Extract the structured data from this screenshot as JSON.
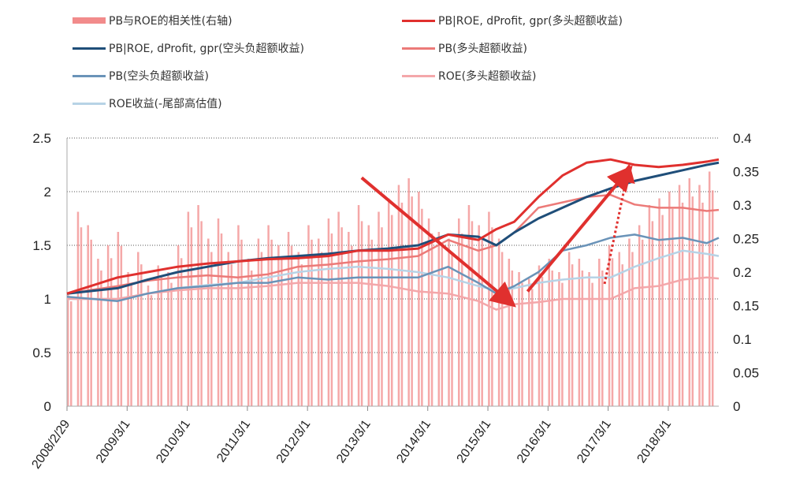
{
  "chart_data": {
    "type": "line",
    "title": "",
    "x_unit": "decimal year",
    "x_ticks": [
      {
        "x": 2008.16,
        "label": "2008/2/29"
      },
      {
        "x": 2009.16,
        "label": "2009/3/1"
      },
      {
        "x": 2010.16,
        "label": "2010/3/1"
      },
      {
        "x": 2011.16,
        "label": "2011/3/1"
      },
      {
        "x": 2012.16,
        "label": "2012/3/1"
      },
      {
        "x": 2013.16,
        "label": "2013/3/1"
      },
      {
        "x": 2014.16,
        "label": "2014/3/1"
      },
      {
        "x": 2015.16,
        "label": "2015/3/1"
      },
      {
        "x": 2016.16,
        "label": "2016/3/1"
      },
      {
        "x": 2017.16,
        "label": "2017/3/1"
      },
      {
        "x": 2018.16,
        "label": "2018/3/1"
      }
    ],
    "xlim": [
      2008.16,
      2019.0
    ],
    "y_left": {
      "lim": [
        0,
        2.5
      ],
      "ticks": [
        "0",
        "0.5",
        "1",
        "1.5",
        "2",
        "2.5"
      ]
    },
    "y_right": {
      "lim": [
        0,
        0.4
      ],
      "ticks": [
        "0",
        "0.05",
        "0.1",
        "0.15",
        "0.2",
        "0.25",
        "0.3",
        "0.35",
        "0.4"
      ]
    },
    "grid": "horizontal dotted",
    "legend_position": "top",
    "bars": {
      "name": "PB与ROE的相关性(右轴)",
      "axis": "right",
      "color": "#f28b8b",
      "x_start": 2008.16,
      "step": 0.1667,
      "values": [
        0.17,
        0.29,
        0.27,
        0.22,
        0.24,
        0.26,
        0.2,
        0.23,
        0.18,
        0.21,
        0.2,
        0.24,
        0.29,
        0.3,
        0.25,
        0.28,
        0.23,
        0.27,
        0.22,
        0.25,
        0.27,
        0.24,
        0.26,
        0.23,
        0.27,
        0.25,
        0.28,
        0.29,
        0.26,
        0.3,
        0.27,
        0.29,
        0.31,
        0.33,
        0.34,
        0.32,
        0.28,
        0.26,
        0.25,
        0.28,
        0.3,
        0.27,
        0.29,
        0.25,
        0.22,
        0.2,
        0.19,
        0.21,
        0.22,
        0.2,
        0.23,
        0.22,
        0.2,
        0.22,
        0.24,
        0.23,
        0.25,
        0.27,
        0.3,
        0.31,
        0.32,
        0.33,
        0.34,
        0.33,
        0.35
      ]
    },
    "series": [
      {
        "name": "PB|ROE, dProfit, gpr(多头超额收益)",
        "color": "#e0302e",
        "width": 3,
        "x": [
          2008.16,
          2009.0,
          2009.5,
          2010.0,
          2010.5,
          2011.0,
          2011.5,
          2012.0,
          2012.5,
          2013.0,
          2013.5,
          2014.0,
          2014.5,
          2015.0,
          2015.3,
          2015.6,
          2016.0,
          2016.4,
          2016.8,
          2017.2,
          2017.6,
          2018.0,
          2018.4,
          2018.8,
          2019.0
        ],
        "values": [
          1.05,
          1.2,
          1.25,
          1.3,
          1.33,
          1.35,
          1.37,
          1.38,
          1.4,
          1.45,
          1.45,
          1.47,
          1.6,
          1.55,
          1.65,
          1.72,
          1.95,
          2.15,
          2.27,
          2.3,
          2.25,
          2.23,
          2.25,
          2.28,
          2.3
        ]
      },
      {
        "name": "PB|ROE, dProfit, gpr(空头负超额收益)",
        "color": "#1f4e79",
        "width": 3,
        "x": [
          2008.16,
          2009.0,
          2009.5,
          2010.0,
          2010.5,
          2011.0,
          2011.5,
          2012.0,
          2012.5,
          2013.0,
          2013.5,
          2014.0,
          2014.5,
          2015.0,
          2015.3,
          2015.6,
          2016.0,
          2016.4,
          2016.8,
          2017.2,
          2017.6,
          2018.0,
          2018.4,
          2018.8,
          2019.0
        ],
        "values": [
          1.05,
          1.1,
          1.18,
          1.25,
          1.3,
          1.35,
          1.38,
          1.4,
          1.42,
          1.45,
          1.47,
          1.5,
          1.6,
          1.58,
          1.5,
          1.62,
          1.75,
          1.85,
          1.95,
          2.03,
          2.1,
          2.15,
          2.2,
          2.25,
          2.27
        ]
      },
      {
        "name": "PB(多头超额收益)",
        "color": "#ec7a78",
        "width": 2.5,
        "x": [
          2008.16,
          2009.0,
          2009.5,
          2010.0,
          2010.5,
          2011.0,
          2011.5,
          2012.0,
          2012.5,
          2013.0,
          2013.5,
          2014.0,
          2014.5,
          2015.0,
          2015.3,
          2015.6,
          2016.0,
          2016.4,
          2016.8,
          2017.2,
          2017.6,
          2018.0,
          2018.4,
          2018.8,
          2019.0
        ],
        "values": [
          1.05,
          1.12,
          1.17,
          1.2,
          1.22,
          1.2,
          1.23,
          1.3,
          1.32,
          1.35,
          1.37,
          1.4,
          1.55,
          1.45,
          1.5,
          1.62,
          1.85,
          1.9,
          1.95,
          1.97,
          1.88,
          1.85,
          1.85,
          1.82,
          1.83
        ]
      },
      {
        "name": "PB(空头负超额收益)",
        "color": "#6a93b8",
        "width": 2.5,
        "x": [
          2008.16,
          2009.0,
          2009.5,
          2010.0,
          2010.5,
          2011.0,
          2011.5,
          2012.0,
          2012.5,
          2013.0,
          2013.5,
          2014.0,
          2014.5,
          2015.0,
          2015.3,
          2015.6,
          2016.0,
          2016.4,
          2016.8,
          2017.2,
          2017.6,
          2018.0,
          2018.4,
          2018.8,
          2019.0
        ],
        "values": [
          1.02,
          0.98,
          1.05,
          1.1,
          1.12,
          1.15,
          1.15,
          1.2,
          1.18,
          1.2,
          1.2,
          1.2,
          1.3,
          1.15,
          1.05,
          1.12,
          1.25,
          1.45,
          1.5,
          1.57,
          1.6,
          1.55,
          1.57,
          1.52,
          1.57
        ]
      },
      {
        "name": "ROE(多头超额收益)",
        "color": "#f4a7aa",
        "width": 2.5,
        "x": [
          2008.16,
          2009.0,
          2009.5,
          2010.0,
          2010.5,
          2011.0,
          2011.5,
          2012.0,
          2012.5,
          2013.0,
          2013.5,
          2014.0,
          2014.5,
          2015.0,
          2015.3,
          2015.6,
          2016.0,
          2016.4,
          2016.8,
          2017.2,
          2017.6,
          2018.0,
          2018.4,
          2018.8,
          2019.0
        ],
        "values": [
          1.0,
          1.0,
          1.05,
          1.08,
          1.1,
          1.1,
          1.12,
          1.15,
          1.15,
          1.15,
          1.12,
          1.07,
          1.05,
          0.98,
          0.9,
          0.95,
          0.97,
          1.0,
          1.0,
          1.0,
          1.1,
          1.12,
          1.18,
          1.2,
          1.19
        ]
      },
      {
        "name": "ROE收益(-尾部高估值)",
        "color": "#b7d3e6",
        "width": 2.5,
        "x": [
          2008.16,
          2009.0,
          2009.5,
          2010.0,
          2010.5,
          2011.0,
          2011.5,
          2012.0,
          2012.5,
          2013.0,
          2013.5,
          2014.0,
          2014.5,
          2015.0,
          2015.3,
          2015.6,
          2016.0,
          2016.4,
          2016.8,
          2017.2,
          2017.6,
          2018.0,
          2018.4,
          2018.8,
          2019.0
        ],
        "values": [
          1.0,
          1.0,
          1.05,
          1.1,
          1.13,
          1.15,
          1.2,
          1.25,
          1.28,
          1.3,
          1.28,
          1.25,
          1.2,
          1.12,
          1.08,
          1.1,
          1.15,
          1.18,
          1.2,
          1.2,
          1.3,
          1.38,
          1.45,
          1.42,
          1.4
        ]
      }
    ],
    "annotations": [
      {
        "type": "arrow",
        "style": "solid",
        "color": "#e0302e",
        "from": [
          2013.06,
          2.13
        ],
        "to": [
          2015.55,
          0.96
        ]
      },
      {
        "type": "arrow",
        "style": "solid",
        "color": "#e0302e",
        "from": [
          2015.82,
          1.07
        ],
        "to": [
          2017.5,
          2.2
        ]
      },
      {
        "type": "arrow",
        "style": "dotted",
        "color": "#e0302e",
        "from": [
          2017.1,
          1.14
        ],
        "to": [
          2017.5,
          2.22
        ]
      }
    ]
  }
}
